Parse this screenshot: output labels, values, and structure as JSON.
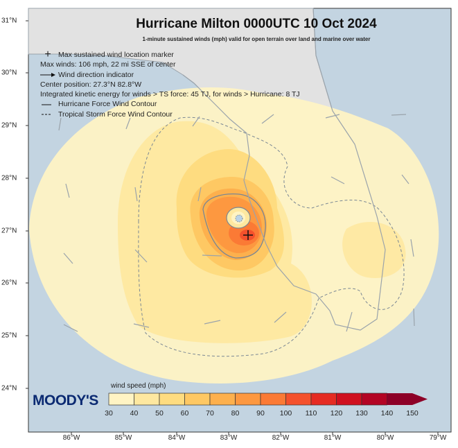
{
  "title": "Hurricane Milton 0000UTC 10 Oct 2024",
  "subtitle": "1-minute sustained winds (mph) valid for open terrain over land and marine over water",
  "legend": {
    "max_marker": "Max sustained wind location marker",
    "max_winds": "Max winds: 106 mph, 22 mi SSE of center",
    "wind_direction": "Wind direction indicator",
    "center_position": "Center position: 27.3°N 82.8°W",
    "ike": "Integrated kinetic energy for winds > TS force: 45 TJ, for winds > Hurricane: 8 TJ",
    "hurricane_contour": "Hurricane Force Wind Contour",
    "ts_contour": "Tropical Storm Force Wind Contour"
  },
  "colorbar": {
    "title": "wind speed (mph)",
    "labels": [
      "30",
      "40",
      "50",
      "60",
      "70",
      "80",
      "90",
      "100",
      "110",
      "120",
      "130",
      "140",
      "150"
    ],
    "colors": [
      "#fff4c4",
      "#fee8a0",
      "#fedc80",
      "#fec863",
      "#fdb04d",
      "#fd9840",
      "#fb7a35",
      "#f4512c",
      "#e52b22",
      "#cf101f",
      "#b30424",
      "#8d0027"
    ]
  },
  "logo": "MOODY'S",
  "lat_labels": [
    "31°N",
    "30°N",
    "29°N",
    "28°N",
    "27°N",
    "26°N",
    "25°N",
    "24°N"
  ],
  "lon_labels": [
    "86°W",
    "85°W",
    "84°W",
    "83°W",
    "82°W",
    "81°W",
    "80°W",
    "79°W"
  ],
  "colors": {
    "water": "#c3d4e1",
    "land": "#e2e2e2",
    "coast": "#9aa3ab",
    "brand": "#0b2a72"
  }
}
